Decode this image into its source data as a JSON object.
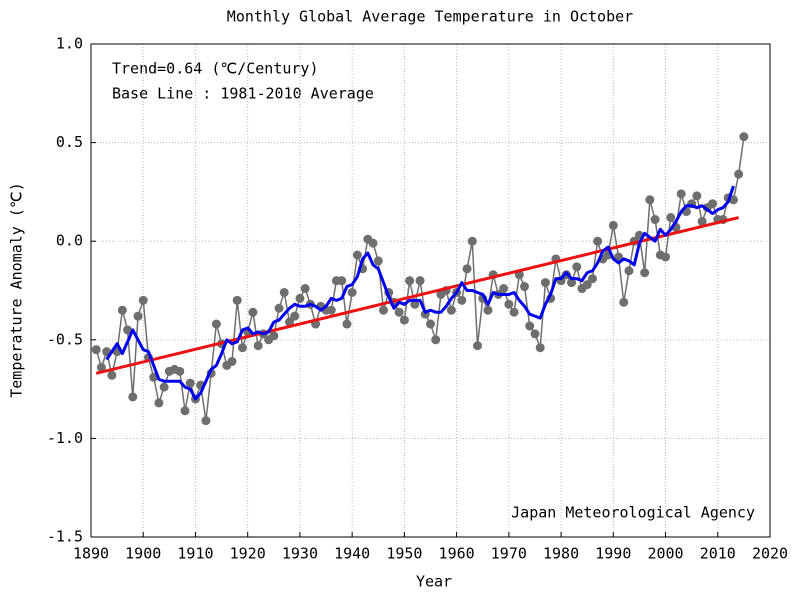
{
  "chart_data": {
    "type": "line",
    "title": "Monthly Global Average Temperature in October",
    "xlabel": "Year",
    "ylabel": "Temperature Anomaly (℃)",
    "annotations": [
      "Trend=0.64 (℃/Century)",
      "Base Line : 1981-2010 Average"
    ],
    "source": "Japan Meteorological Agency",
    "xlim": [
      1890,
      2020
    ],
    "xticks": [
      1890,
      1900,
      1910,
      1920,
      1930,
      1940,
      1950,
      1960,
      1970,
      1980,
      1990,
      2000,
      2010,
      2020
    ],
    "ylim": [
      -1.5,
      1.0
    ],
    "yticks": [
      {
        "value": 1.0,
        "label": "1.0"
      },
      0.5,
      {
        "value": 0.0,
        "label": "0.0"
      },
      -0.5,
      {
        "value": -1.0,
        "label": "-1.0"
      },
      -1.5
    ],
    "grid": true,
    "x": [
      1891,
      1892,
      1893,
      1894,
      1895,
      1896,
      1897,
      1898,
      1899,
      1900,
      1901,
      1902,
      1903,
      1904,
      1905,
      1906,
      1907,
      1908,
      1909,
      1910,
      1911,
      1912,
      1913,
      1914,
      1915,
      1916,
      1917,
      1918,
      1919,
      1920,
      1921,
      1922,
      1923,
      1924,
      1925,
      1926,
      1927,
      1928,
      1929,
      1930,
      1931,
      1932,
      1933,
      1934,
      1935,
      1936,
      1937,
      1938,
      1939,
      1940,
      1941,
      1942,
      1943,
      1944,
      1945,
      1946,
      1947,
      1948,
      1949,
      1950,
      1951,
      1952,
      1953,
      1954,
      1955,
      1956,
      1957,
      1958,
      1959,
      1960,
      1961,
      1962,
      1963,
      1964,
      1965,
      1966,
      1967,
      1968,
      1969,
      1970,
      1971,
      1972,
      1973,
      1974,
      1975,
      1976,
      1977,
      1978,
      1979,
      1980,
      1981,
      1982,
      1983,
      1984,
      1985,
      1986,
      1987,
      1988,
      1989,
      1990,
      1991,
      1992,
      1993,
      1994,
      1995,
      1996,
      1997,
      1998,
      1999,
      2000,
      2001,
      2002,
      2003,
      2004,
      2005,
      2006,
      2007,
      2008,
      2009,
      2010,
      2011,
      2012,
      2013,
      2014,
      2015
    ],
    "series": [
      {
        "color": "#6e6e6e",
        "markers": true,
        "values": [
          -0.55,
          -0.64,
          -0.56,
          -0.68,
          -0.56,
          -0.35,
          -0.45,
          -0.79,
          -0.38,
          -0.3,
          -0.59,
          -0.69,
          -0.82,
          -0.74,
          -0.66,
          -0.65,
          -0.66,
          -0.86,
          -0.72,
          -0.8,
          -0.73,
          -0.91,
          -0.67,
          -0.42,
          -0.52,
          -0.63,
          -0.61,
          -0.3,
          -0.54,
          -0.46,
          -0.36,
          -0.53,
          -0.47,
          -0.5,
          -0.48,
          -0.34,
          -0.26,
          -0.41,
          -0.38,
          -0.29,
          -0.24,
          -0.32,
          -0.42,
          -0.33,
          -0.35,
          -0.35,
          -0.2,
          -0.2,
          -0.42,
          -0.26,
          -0.07,
          -0.14,
          0.01,
          -0.01,
          -0.1,
          -0.35,
          -0.26,
          -0.31,
          -0.36,
          -0.4,
          -0.2,
          -0.32,
          -0.2,
          -0.37,
          -0.42,
          -0.5,
          -0.27,
          -0.25,
          -0.35,
          -0.26,
          -0.3,
          -0.14,
          0.0,
          -0.53,
          -0.29,
          -0.35,
          -0.17,
          -0.27,
          -0.24,
          -0.32,
          -0.36,
          -0.17,
          -0.23,
          -0.43,
          -0.47,
          -0.54,
          -0.21,
          -0.29,
          -0.09,
          -0.2,
          -0.17,
          -0.21,
          -0.13,
          -0.24,
          -0.22,
          -0.19,
          0.0,
          -0.09,
          -0.07,
          0.08,
          -0.08,
          -0.31,
          -0.15,
          0.0,
          0.03,
          -0.16,
          0.21,
          0.11,
          -0.07,
          -0.08,
          0.12,
          0.07,
          0.24,
          0.15,
          0.19,
          0.23,
          0.1,
          0.17,
          0.19,
          0.11,
          0.11,
          0.22,
          0.21,
          0.34,
          0.53
        ]
      },
      {
        "color": "#0000ee",
        "markers": false,
        "values": [
          null,
          null,
          -0.6,
          -0.56,
          -0.52,
          -0.57,
          -0.51,
          -0.45,
          -0.5,
          -0.55,
          -0.56,
          -0.63,
          -0.7,
          -0.71,
          -0.71,
          -0.71,
          -0.71,
          -0.74,
          -0.75,
          -0.8,
          -0.77,
          -0.71,
          -0.65,
          -0.63,
          -0.57,
          -0.5,
          -0.52,
          -0.51,
          -0.45,
          -0.44,
          -0.47,
          -0.46,
          -0.47,
          -0.46,
          -0.41,
          -0.4,
          -0.37,
          -0.34,
          -0.32,
          -0.33,
          -0.33,
          -0.32,
          -0.33,
          -0.35,
          -0.33,
          -0.29,
          -0.3,
          -0.29,
          -0.23,
          -0.22,
          -0.18,
          -0.09,
          -0.06,
          -0.12,
          -0.14,
          -0.21,
          -0.28,
          -0.34,
          -0.31,
          -0.32,
          -0.3,
          -0.3,
          -0.3,
          -0.36,
          -0.35,
          -0.36,
          -0.36,
          -0.33,
          -0.29,
          -0.26,
          -0.21,
          -0.25,
          -0.25,
          -0.26,
          -0.27,
          -0.32,
          -0.26,
          -0.27,
          -0.27,
          -0.27,
          -0.26,
          -0.3,
          -0.33,
          -0.37,
          -0.38,
          -0.39,
          -0.32,
          -0.27,
          -0.19,
          -0.19,
          -0.16,
          -0.19,
          -0.19,
          -0.2,
          -0.16,
          -0.15,
          -0.11,
          -0.05,
          -0.03,
          -0.09,
          -0.11,
          -0.09,
          -0.1,
          -0.12,
          -0.01,
          0.04,
          0.02,
          0.0,
          0.06,
          0.03,
          0.06,
          0.1,
          0.15,
          0.18,
          0.18,
          0.17,
          0.18,
          0.16,
          0.14,
          0.16,
          0.17,
          0.2,
          0.28,
          null,
          null
        ]
      }
    ],
    "trend_line": {
      "color": "#ee1111",
      "x": [
        1891,
        2014
      ],
      "values": [
        -0.67,
        0.12
      ]
    }
  }
}
